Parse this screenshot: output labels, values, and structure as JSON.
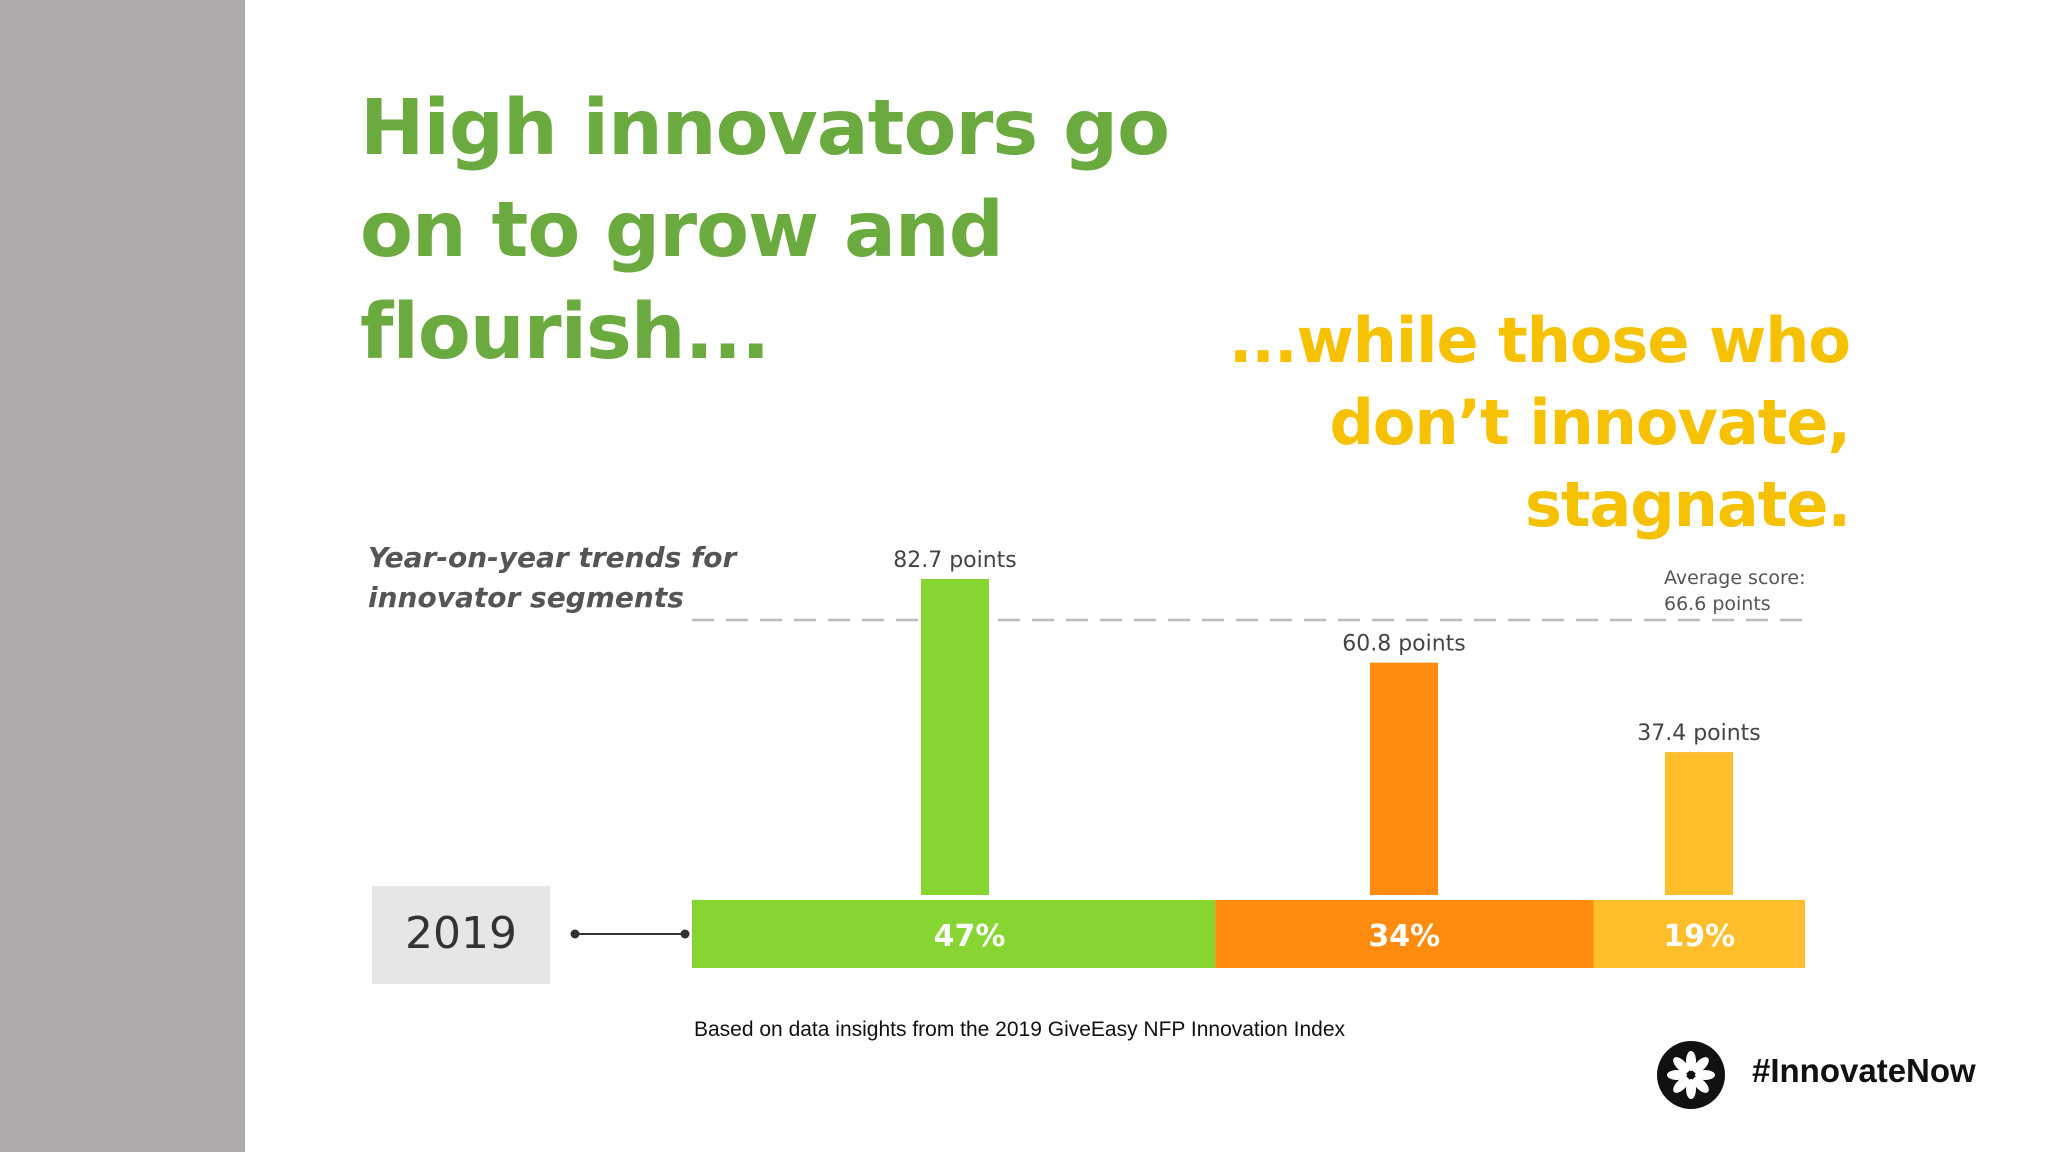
{
  "headline_left": "High innovators go on to grow and flourish...",
  "headline_right": "...while those who don’t innovate, stagnate.",
  "colors": {
    "sidebar": "#aeaaab",
    "headline_left": "#6aaa3f",
    "headline_right": "#f5c100",
    "high": "#86d530",
    "mid": "#ff8c0f",
    "low": "#ffbe2a"
  },
  "chart_data": {
    "type": "bar",
    "title": "Year-on-year trends for innovator segments",
    "year_label": "2019",
    "average": {
      "value": 66.6,
      "label": "Average score:\n66.6 points"
    },
    "ylim": [
      0,
      82.7
    ],
    "series": [
      {
        "value": 82.7,
        "label": "82.7 points",
        "share": 47,
        "share_label": "47%",
        "color": "#86d530"
      },
      {
        "value": 60.8,
        "label": "60.8 points",
        "share": 34,
        "share_label": "34%",
        "color": "#ff8c0f"
      },
      {
        "value": 37.4,
        "label": "37.4 points",
        "share": 19,
        "share_label": "19%",
        "color": "#ffbe2a"
      }
    ]
  },
  "source_note": "Based on data insights from the 2019 GiveEasy NFP Innovation Index",
  "hashtag": "#InnovateNow",
  "logo_icon": "flower-logo-icon"
}
